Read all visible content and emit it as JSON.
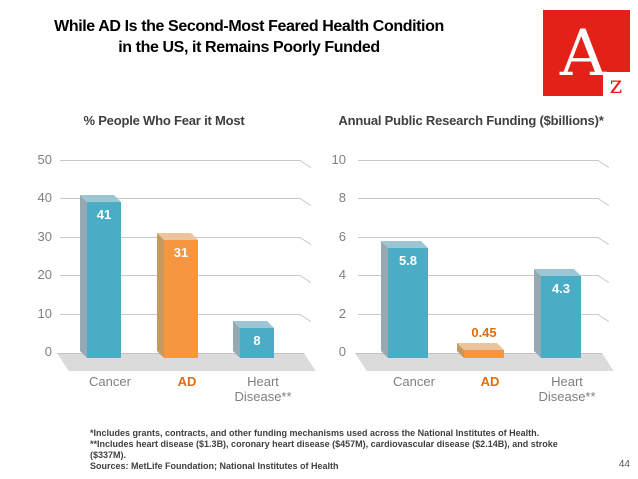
{
  "slide": {
    "title_line1": "While AD Is the Second-Most Feared Health Condition",
    "title_line2": "in the US, it Remains Poorly Funded",
    "page_number": "44",
    "logo": {
      "letter_a": "A",
      "letter_z": "z",
      "red": "#E32119"
    }
  },
  "chart_data": [
    {
      "type": "bar",
      "title": "% People Who Fear it Most",
      "categories": [
        "Cancer",
        "AD",
        "Heart Disease**"
      ],
      "values": [
        41,
        31,
        8
      ],
      "bar_labels": [
        "41",
        "31",
        "8"
      ],
      "label_pos": [
        "inside",
        "inside",
        "inside"
      ],
      "bar_colors": [
        "teal",
        "orange",
        "teal"
      ],
      "category_colors": [
        "#7F7F7F",
        "#E36C09",
        "#7F7F7F"
      ],
      "category_bold": [
        false,
        true,
        false
      ],
      "ylim": [
        0,
        50
      ],
      "yticks": [
        0,
        10,
        20,
        30,
        40,
        50
      ],
      "xlabel": "",
      "ylabel": "",
      "grid": true,
      "legend": "none",
      "style": "3d-column"
    },
    {
      "type": "bar",
      "title": "Annual Public Research Funding ($billions)*",
      "categories": [
        "Cancer",
        "AD",
        "Heart Disease**"
      ],
      "values": [
        5.8,
        0.45,
        4.3
      ],
      "bar_labels": [
        "5.8",
        "0.45",
        "4.3"
      ],
      "label_pos": [
        "inside",
        "above",
        "inside"
      ],
      "bar_colors": [
        "teal",
        "orange",
        "teal"
      ],
      "category_colors": [
        "#7F7F7F",
        "#E36C09",
        "#7F7F7F"
      ],
      "category_bold": [
        false,
        true,
        false
      ],
      "ylim": [
        0,
        10
      ],
      "yticks": [
        0,
        2,
        4,
        6,
        8,
        10
      ],
      "xlabel": "",
      "ylabel": "",
      "grid": true,
      "legend": "none",
      "style": "3d-column"
    }
  ],
  "footnotes": {
    "lines": [
      "*Includes grants, contracts, and other funding mechanisms used across the National Institutes of Health.",
      "**Includes heart disease ($1.3B), coronary heart disease ($457M), cardiovascular disease ($2.14B), and stroke",
      "($337M).",
      "Sources: MetLife Foundation; National Institutes of Health"
    ]
  },
  "colors": {
    "teal": {
      "front": "#4BACC6",
      "top": "#9DC6D4",
      "side": "#94A9B1"
    },
    "orange": {
      "front": "#F79641",
      "top": "#EBC49C",
      "side": "#C8995F"
    },
    "above_label": "#E36C09",
    "gridline": "#C9C9C9",
    "floor": "#DBDBDB"
  }
}
